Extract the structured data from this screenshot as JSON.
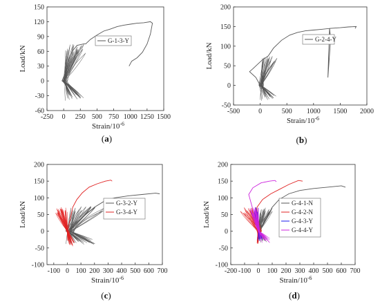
{
  "chart_data": [
    {
      "type": "line",
      "panel_label": "a",
      "xlabel": "Strain/10",
      "xlabel_sup": "-6",
      "ylabel": "Load/kN",
      "xlim": [
        -250,
        1500
      ],
      "ylim": [
        -60,
        150
      ],
      "xticks": [
        -250,
        0,
        250,
        500,
        750,
        1000,
        1250,
        1500
      ],
      "yticks": [
        -60,
        -30,
        0,
        30,
        60,
        90,
        120,
        150
      ],
      "legend_position": "top-right",
      "series": [
        {
          "name": "G-1-3-Y",
          "color": "#555555",
          "hysteresis_loops": 18,
          "envelope": [
            [
              0,
              0
            ],
            [
              40,
              20
            ],
            [
              80,
              45
            ],
            [
              140,
              62
            ],
            [
              200,
              72
            ],
            [
              300,
              75
            ],
            [
              330,
              75
            ],
            [
              400,
              84
            ],
            [
              500,
              93
            ],
            [
              600,
              101
            ],
            [
              700,
              105
            ],
            [
              800,
              110
            ],
            [
              900,
              113
            ],
            [
              1000,
              115
            ],
            [
              1100,
              117
            ],
            [
              1200,
              118
            ],
            [
              1300,
              120
            ],
            [
              1330,
              117
            ],
            [
              1300,
              95
            ],
            [
              1250,
              75
            ],
            [
              1180,
              58
            ],
            [
              1100,
              47
            ],
            [
              1020,
              40
            ],
            [
              980,
              30
            ]
          ],
          "loop_peaks": {
            "max_load": 75,
            "min_load": -40,
            "strain_at_max": 320,
            "strain_at_min": 290
          }
        }
      ]
    },
    {
      "type": "line",
      "panel_label": "b",
      "xlabel": "Strain/10",
      "xlabel_sup": "-6",
      "ylabel": "Load/kN",
      "xlim": [
        -500,
        2000
      ],
      "ylim": [
        -50,
        200
      ],
      "xticks": [
        -500,
        0,
        500,
        1000,
        1500,
        2000
      ],
      "yticks": [
        -50,
        0,
        50,
        100,
        150,
        200
      ],
      "legend_position": "top-right",
      "series": [
        {
          "name": "G-2-4-Y",
          "color": "#555555",
          "hysteresis_loops": 16,
          "envelope": [
            [
              0,
              0
            ],
            [
              -80,
              20
            ],
            [
              -200,
              35
            ],
            [
              -140,
              42
            ],
            [
              -40,
              55
            ],
            [
              40,
              65
            ],
            [
              150,
              75
            ],
            [
              250,
              95
            ],
            [
              400,
              115
            ],
            [
              550,
              128
            ],
            [
              700,
              135
            ],
            [
              850,
              139
            ],
            [
              1000,
              141
            ],
            [
              1150,
              143
            ],
            [
              1300,
              145
            ],
            [
              1320,
              120
            ],
            [
              1300,
              80
            ],
            [
              1280,
              40
            ],
            [
              1270,
              20
            ],
            [
              1300,
              145
            ],
            [
              1500,
              147
            ],
            [
              1650,
              149
            ],
            [
              1800,
              150
            ],
            [
              1780,
              145
            ]
          ],
          "loop_peaks": {
            "max_load": 75,
            "min_load": -40,
            "strain_at_max": 300,
            "strain_at_min": 310
          }
        }
      ]
    },
    {
      "type": "line",
      "panel_label": "c",
      "xlabel": "Strain/10",
      "xlabel_sup": "-6",
      "ylabel": "Load/kN",
      "xlim": [
        -150,
        700
      ],
      "ylim": [
        -100,
        200
      ],
      "xticks": [
        -100,
        0,
        100,
        200,
        300,
        400,
        500,
        600,
        700
      ],
      "yticks": [
        -100,
        -50,
        0,
        50,
        100,
        150,
        200
      ],
      "legend_position": "top-right",
      "series": [
        {
          "name": "G-3-2-Y",
          "color": "#555555",
          "hysteresis_loops": 18,
          "envelope": [
            [
              0,
              0
            ],
            [
              80,
              30
            ],
            [
              150,
              55
            ],
            [
              200,
              72
            ],
            [
              280,
              92
            ],
            [
              350,
              100
            ],
            [
              450,
              106
            ],
            [
              550,
              110
            ],
            [
              650,
              114
            ],
            [
              680,
              112
            ]
          ],
          "loop_peaks": {
            "max_load": 75,
            "min_load": -40,
            "strain_at_max": 260,
            "strain_at_min": 220
          }
        },
        {
          "name": "G-3-4-Y",
          "color": "#e02020",
          "hysteresis_loops": 18,
          "envelope": [
            [
              0,
              0
            ],
            [
              20,
              35
            ],
            [
              40,
              72
            ],
            [
              70,
              95
            ],
            [
              110,
              115
            ],
            [
              160,
              132
            ],
            [
              220,
              142
            ],
            [
              280,
              150
            ],
            [
              320,
              153
            ],
            [
              330,
              150
            ]
          ],
          "loop_peaks": {
            "max_load": 72,
            "min_load": -45,
            "strain_at_max": -90,
            "strain_at_min": 50
          }
        }
      ]
    },
    {
      "type": "line",
      "panel_label": "d",
      "xlabel": "Strain/10",
      "xlabel_sup": "-6",
      "ylabel": "Load/kN",
      "xlim": [
        -200,
        700
      ],
      "ylim": [
        -100,
        200
      ],
      "xticks": [
        -200,
        -100,
        0,
        100,
        200,
        300,
        400,
        500,
        600,
        700
      ],
      "yticks": [
        -100,
        -50,
        0,
        50,
        100,
        150,
        200
      ],
      "legend_position": "top-right",
      "series": [
        {
          "name": "G-4-1-N",
          "color": "#555555",
          "hysteresis_loops": 16,
          "envelope": [
            [
              0,
              0
            ],
            [
              60,
              40
            ],
            [
              100,
              72
            ],
            [
              150,
              95
            ],
            [
              220,
              112
            ],
            [
              300,
              122
            ],
            [
              400,
              128
            ],
            [
              500,
              132
            ],
            [
              600,
              136
            ],
            [
              630,
              132
            ]
          ],
          "loop_peaks": {
            "max_load": 72,
            "min_load": -35,
            "strain_at_max": 100,
            "strain_at_min": 60
          }
        },
        {
          "name": "G-4-2-N",
          "color": "#e02020",
          "hysteresis_loops": 16,
          "envelope": [
            [
              0,
              0
            ],
            [
              -20,
              40
            ],
            [
              -10,
              72
            ],
            [
              30,
              95
            ],
            [
              90,
              112
            ],
            [
              150,
              125
            ],
            [
              220,
              140
            ],
            [
              290,
              152
            ],
            [
              320,
              150
            ]
          ],
          "loop_peaks": {
            "max_load": 72,
            "min_load": -38,
            "strain_at_max": -120,
            "strain_at_min": -10
          }
        },
        {
          "name": "G-4-3-Y",
          "color": "#1a1aee",
          "hysteresis_loops": 14,
          "envelope": [
            [
              0,
              0
            ],
            [
              -10,
              40
            ],
            [
              -20,
              72
            ]
          ],
          "loop_peaks": {
            "max_load": 72,
            "min_load": -30,
            "strain_at_max": -30,
            "strain_at_min": 30
          }
        },
        {
          "name": "G-4-4-Y",
          "color": "#cc22dd",
          "hysteresis_loops": 16,
          "envelope": [
            [
              0,
              0
            ],
            [
              -30,
              50
            ],
            [
              -50,
              80
            ],
            [
              -70,
              110
            ],
            [
              -40,
              130
            ],
            [
              20,
              145
            ],
            [
              80,
              150
            ],
            [
              120,
              152
            ],
            [
              130,
              148
            ]
          ],
          "loop_peaks": {
            "max_load": 72,
            "min_load": -35,
            "strain_at_max": -60,
            "strain_at_min": 90
          }
        }
      ]
    }
  ]
}
